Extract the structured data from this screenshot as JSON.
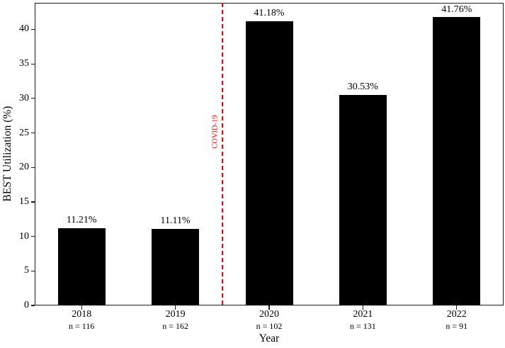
{
  "chart_data": {
    "type": "bar",
    "title": "",
    "xlabel": "Year",
    "ylabel": "BEST Utilization (%)",
    "categories": [
      "2018",
      "2019",
      "2020",
      "2021",
      "2022"
    ],
    "values": [
      11.21,
      11.11,
      41.18,
      30.53,
      41.76
    ],
    "bar_labels": [
      "11.21%",
      "11.11%",
      "41.18%",
      "30.53%",
      "41.76%"
    ],
    "sample_sizes": [
      "n = 116",
      "n = 162",
      "n = 102",
      "n = 131",
      "n = 91"
    ],
    "y_ticks": [
      0,
      5,
      10,
      15,
      20,
      25,
      30,
      35,
      40
    ],
    "ylim": [
      0,
      43.85
    ],
    "grid": false,
    "legend": "none",
    "bar_color": "#000000",
    "frame_color": "#1c1c1c",
    "annotation": {
      "label": "COVID-19",
      "between_categories": [
        "2019",
        "2020"
      ],
      "line_style": "dashed",
      "color": "#ff0000"
    }
  }
}
